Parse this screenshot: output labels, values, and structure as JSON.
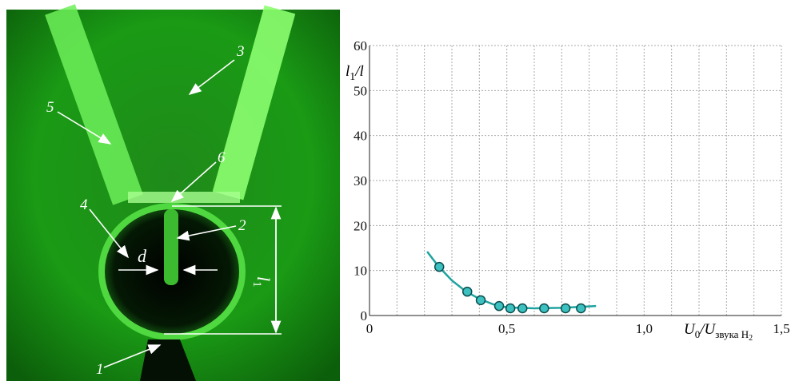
{
  "photo": {
    "labels": [
      "1",
      "2",
      "3",
      "4",
      "5",
      "6",
      "d"
    ],
    "dimension": {
      "base": "l",
      "sub": "1"
    }
  },
  "chart_data": {
    "type": "scatter",
    "x_label": {
      "base": "U",
      "sub": "0",
      "mid": "/U",
      "sub2": "звука H",
      "subsub": "2"
    },
    "y_label": {
      "base": "l",
      "sub": "1",
      "rest": "/l"
    },
    "xlim": [
      0,
      1.5
    ],
    "ylim": [
      0,
      60
    ],
    "xticks": [
      0,
      {
        "value": 0.5,
        "label": "0,5"
      },
      {
        "value": 1.0,
        "label": "1,0"
      },
      {
        "value": 1.5,
        "label": "1,5"
      }
    ],
    "x_minor_ticks": [
      0.1,
      0.2,
      0.3,
      0.4,
      0.6,
      0.7,
      0.8,
      0.9,
      1.1,
      1.2,
      1.3,
      1.4
    ],
    "yticks": [
      0,
      10,
      20,
      30,
      40,
      50,
      60
    ],
    "grid": true,
    "series": [
      {
        "color": "#3cc0c0",
        "x": [
          0.254,
          0.356,
          0.405,
          0.472,
          0.513,
          0.557,
          0.636,
          0.714,
          0.77
        ],
        "values": [
          10.8,
          5.3,
          3.4,
          2.1,
          1.6,
          1.6,
          1.6,
          1.6,
          1.6
        ]
      },
      {
        "color": "#1fa3a0",
        "x": [
          0.21,
          0.25,
          0.3,
          0.35,
          0.4,
          0.45,
          0.5,
          0.6,
          0.7,
          0.825
        ],
        "values": [
          14.2,
          11,
          7.8,
          5.4,
          3.7,
          2.5,
          1.8,
          1.6,
          1.7,
          2.1
        ]
      }
    ]
  }
}
